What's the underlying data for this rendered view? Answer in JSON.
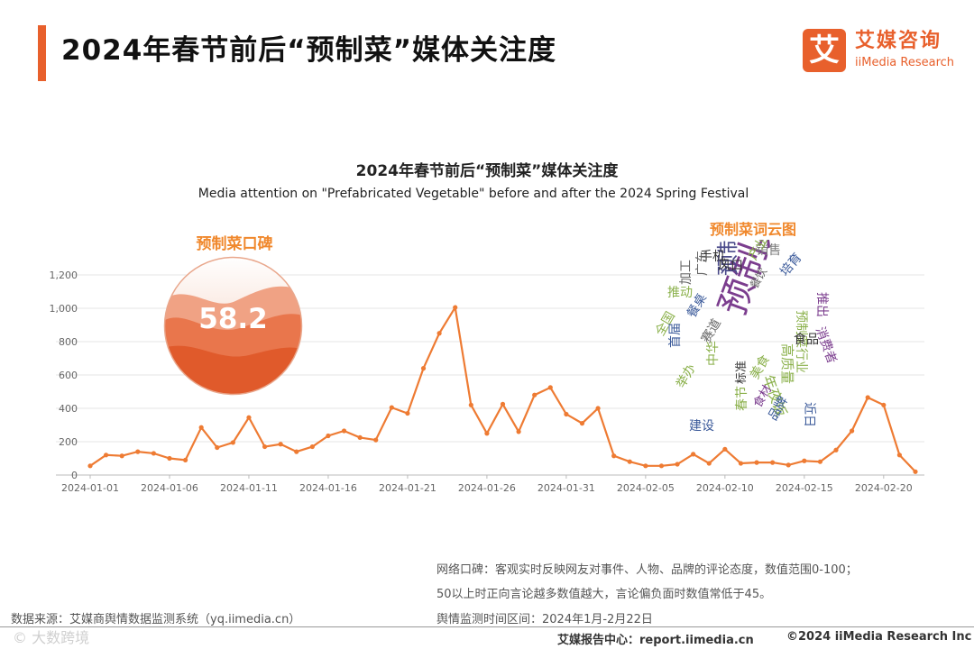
{
  "header": {
    "title": "2024年春节前后“预制菜”媒体关注度",
    "logo_mark": "艾",
    "logo_cn": "艾媒咨询",
    "logo_en": "iiMedia Research"
  },
  "chart_data": {
    "type": "line",
    "title": "2024年春节前后“预制菜”媒体关注度",
    "subtitle": "Media attention on \"Prefabricated Vegetable\" before and after the 2024 Spring Festival",
    "xlabel": "",
    "ylabel": "",
    "x": [
      "2024-01-01",
      "2024-01-02",
      "2024-01-03",
      "2024-01-04",
      "2024-01-05",
      "2024-01-06",
      "2024-01-07",
      "2024-01-08",
      "2024-01-09",
      "2024-01-10",
      "2024-01-11",
      "2024-01-12",
      "2024-01-13",
      "2024-01-14",
      "2024-01-15",
      "2024-01-16",
      "2024-01-17",
      "2024-01-18",
      "2024-01-19",
      "2024-01-20",
      "2024-01-21",
      "2024-01-22",
      "2024-01-23",
      "2024-01-24",
      "2024-01-25",
      "2024-01-26",
      "2024-01-27",
      "2024-01-28",
      "2024-01-29",
      "2024-01-30",
      "2024-01-31",
      "2024-02-01",
      "2024-02-02",
      "2024-02-03",
      "2024-02-04",
      "2024-02-05",
      "2024-02-06",
      "2024-02-07",
      "2024-02-08",
      "2024-02-09",
      "2024-02-10",
      "2024-02-11",
      "2024-02-12",
      "2024-02-13",
      "2024-02-14",
      "2024-02-15",
      "2024-02-16",
      "2024-02-17",
      "2024-02-18",
      "2024-02-19",
      "2024-02-20",
      "2024-02-21",
      "2024-02-22"
    ],
    "series": [
      {
        "name": "",
        "values": [
          55,
          120,
          115,
          140,
          130,
          100,
          90,
          285,
          165,
          195,
          345,
          170,
          185,
          140,
          170,
          235,
          265,
          225,
          210,
          405,
          370,
          640,
          850,
          1005,
          420,
          250,
          425,
          260,
          480,
          525,
          365,
          310,
          400,
          115,
          80,
          55,
          55,
          65,
          125,
          70,
          155,
          70,
          75,
          75,
          60,
          85,
          80,
          150,
          265,
          465,
          420,
          120,
          20
        ]
      }
    ],
    "xticks": [
      "2024-01-01",
      "2024-01-06",
      "2024-01-11",
      "2024-01-16",
      "2024-01-21",
      "2024-01-26",
      "2024-01-31",
      "2024-02-05",
      "2024-02-10",
      "2024-02-15",
      "2024-02-20"
    ],
    "yticks": [
      "0",
      "200",
      "400",
      "600",
      "800",
      "1,000",
      "1,200"
    ],
    "ylim": [
      0,
      1200
    ],
    "grid": true,
    "color": "#ee7b33",
    "legend": "none"
  },
  "koubei": {
    "title": "预制菜口碑",
    "value": "58.2",
    "color_top": "#f5d2c3",
    "color_bottom": "#e05a2b"
  },
  "wordcloud": {
    "title": "预制菜词云图",
    "words": [
      {
        "text": "预制菜",
        "color": "#7b3d8e"
      },
      {
        "text": "预制",
        "color": "#4a4a8a"
      },
      {
        "text": "手机",
        "color": "#333333"
      },
      {
        "text": "销售",
        "color": "#7a7a7a"
      },
      {
        "text": "风口",
        "color": "#333333"
      },
      {
        "text": "产业园",
        "color": "#8ab04a"
      },
      {
        "text": "培育",
        "color": "#3b5a9a"
      },
      {
        "text": "加工",
        "color": "#666666"
      },
      {
        "text": "广东",
        "color": "#666666"
      },
      {
        "text": "推动",
        "color": "#8ab04a"
      },
      {
        "text": "餐桌",
        "color": "#3b5a9a"
      },
      {
        "text": "全国",
        "color": "#8ab04a"
      },
      {
        "text": "举办",
        "color": "#8ab04a"
      },
      {
        "text": "建设",
        "color": "#3b5a9a"
      },
      {
        "text": "推出",
        "color": "#7b3d8e"
      },
      {
        "text": "消费者",
        "color": "#7b3d8e"
      },
      {
        "text": "预制菜行业",
        "color": "#8ab04a"
      },
      {
        "text": "近日",
        "color": "#3b5a9a"
      },
      {
        "text": "高质量",
        "color": "#8ab04a"
      },
      {
        "text": "食品",
        "color": "#333333"
      },
      {
        "text": "年夜饭",
        "color": "#8ab04a"
      },
      {
        "text": "品牌",
        "color": "#3b5a9a"
      },
      {
        "text": "美食",
        "color": "#8ab04a"
      },
      {
        "text": "标准",
        "color": "#333333"
      },
      {
        "text": "赛道",
        "color": "#666666"
      },
      {
        "text": "首届",
        "color": "#3b5a9a"
      },
      {
        "text": "中华",
        "color": "#8ab04a"
      },
      {
        "text": "食材",
        "color": "#7b3d8e"
      },
      {
        "text": "餐饮",
        "color": "#666666"
      },
      {
        "text": "春节",
        "color": "#8ab04a"
      }
    ]
  },
  "notes": {
    "line1": "网络口碑：客观实时反映网友对事件、人物、品牌的评论态度，数值范围0-100；",
    "line2": "50以上时正向言论越多数值越大，言论偏负面时数值常低于45。",
    "line3": "舆情监测时间区间：2024年1月-2月22日"
  },
  "footer": {
    "source": "数据来源：艾媒商舆情数据监测系统（yq.iimedia.cn）",
    "watermark": "© 大数跨境",
    "report": "艾媒报告中心：report.iimedia.cn",
    "copyright": "©2024  iiMedia Research  Inc"
  }
}
